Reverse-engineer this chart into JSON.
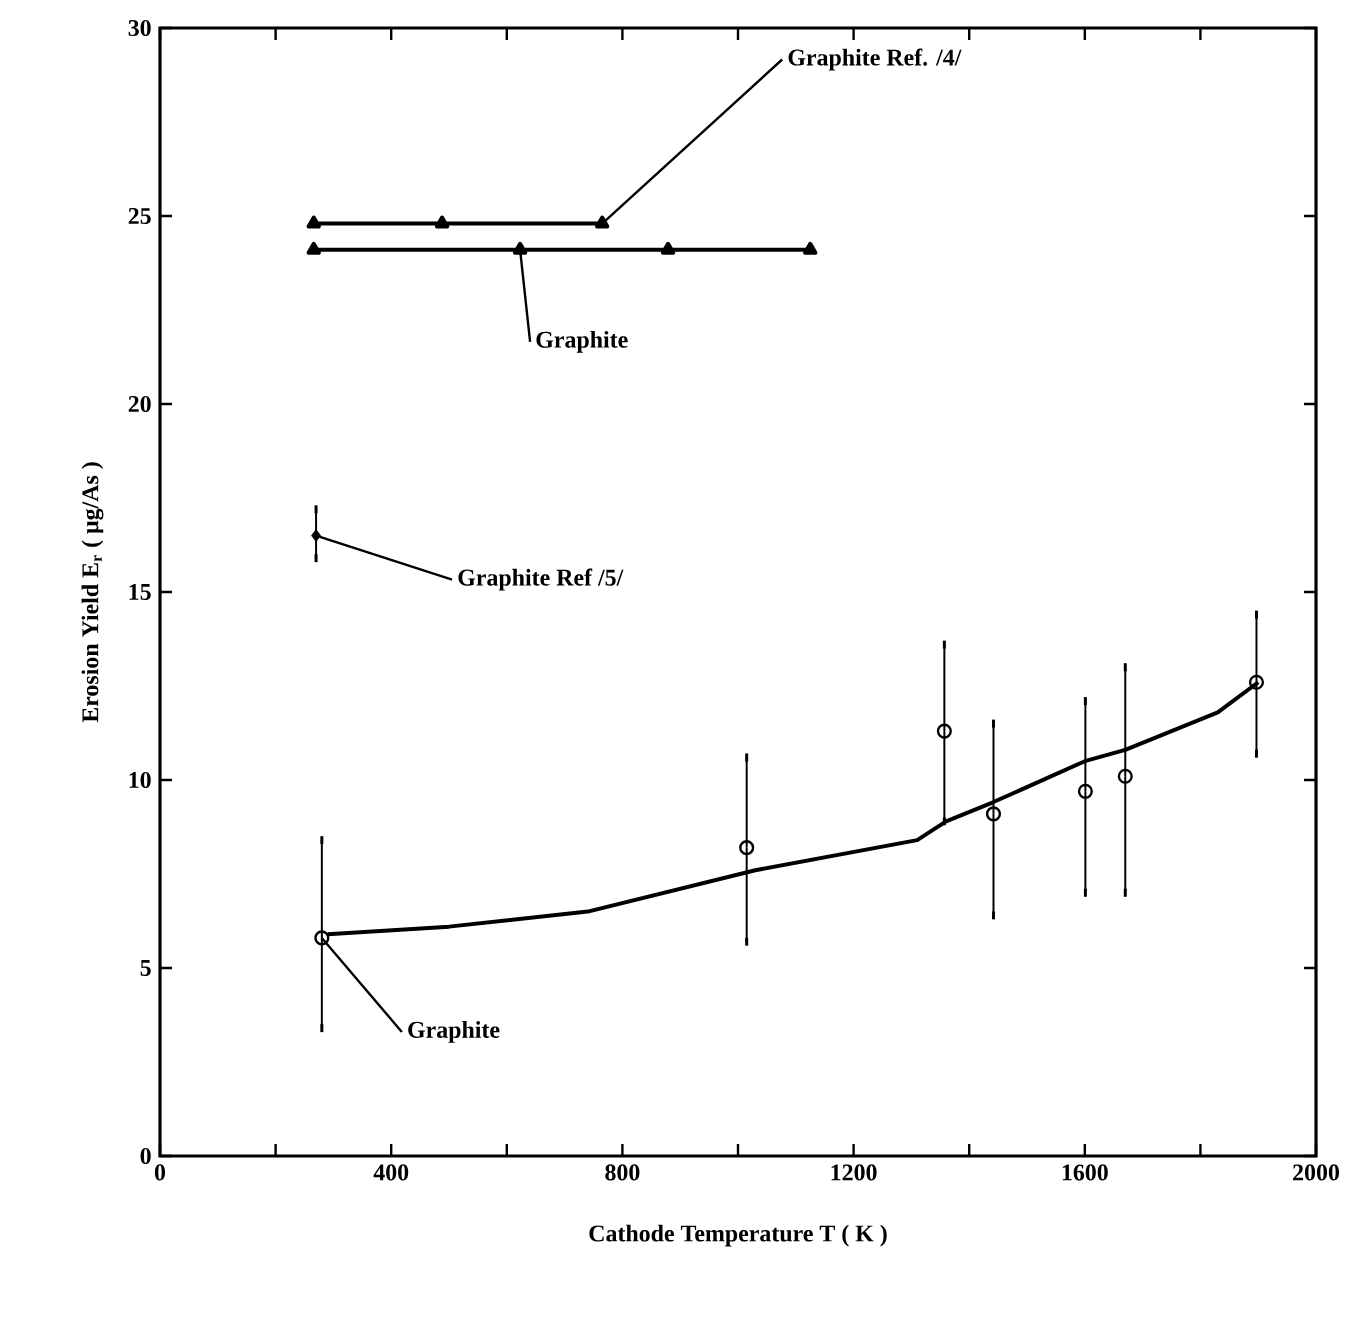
{
  "chart_data": {
    "type": "line",
    "xlabel": "Cathode Temperature      T ( K )",
    "ylabel": "Erosion Yield    E$_{r}$  ( μg/As )",
    "xlim": [
      0,
      2000
    ],
    "ylim": [
      0,
      30
    ],
    "xticks": [
      0,
      {
        "value": 200,
        "label": null
      },
      400,
      {
        "value": 600,
        "label": null
      },
      800,
      {
        "value": 1000,
        "label": null
      },
      1200,
      {
        "value": 1400,
        "label": null
      },
      1600,
      {
        "value": 1800,
        "label": null
      },
      2000
    ],
    "yticks": [
      0,
      5,
      10,
      15,
      20,
      25,
      30
    ],
    "grid": false,
    "legend": "right",
    "series": [
      {
        "name": "Graphite Ref. /4/",
        "marker": "triangle",
        "color": "#000000",
        "x": [
          266,
          488,
          765
        ],
        "values": [
          24.8,
          24.8,
          24.8
        ]
      },
      {
        "name": "Graphite",
        "marker": "triangle",
        "color": "#000000",
        "x": [
          266,
          623,
          879,
          1125
        ],
        "values": [
          24.1,
          24.1,
          24.1,
          24.1
        ]
      },
      {
        "name": "Graphite Ref /5/",
        "type": "scatter",
        "marker": "diamond",
        "color": "#000000",
        "x": [
          270
        ],
        "values": [
          16.5
        ],
        "errors": [
          [
            15.9,
            17.2
          ]
        ]
      },
      {
        "name": "Graphite",
        "type": "scatter",
        "marker": "circle",
        "color": "#000000",
        "x": [
          280,
          1015,
          1357,
          1442,
          1601,
          1670,
          1897
        ],
        "values": [
          5.8,
          8.2,
          11.3,
          9.1,
          9.7,
          10.1,
          12.6
        ],
        "errors": [
          [
            3.4,
            8.4
          ],
          [
            5.7,
            10.6
          ],
          [
            8.9,
            13.6
          ],
          [
            6.4,
            11.5
          ],
          [
            7.0,
            12.1
          ],
          [
            7.0,
            13.0
          ],
          [
            10.7,
            14.4
          ]
        ]
      },
      {
        "marker": "none",
        "color": "#000000",
        "x": [
          290,
          500,
          740,
          1030,
          1310,
          1360,
          1440,
          1600,
          1670,
          1830,
          1900
        ],
        "values": [
          5.9,
          6.1,
          6.5,
          7.6,
          8.4,
          8.9,
          9.4,
          10.5,
          10.8,
          11.8,
          12.6
        ]
      }
    ]
  }
}
